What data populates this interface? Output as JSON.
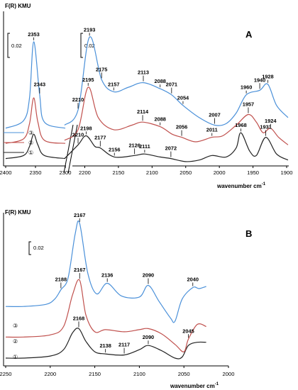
{
  "chart_data": [
    {
      "type": "line",
      "panel_label": "A",
      "yunit": "F(R) KMU",
      "xlabel": "wavenumber cm",
      "xlabel_sup": "-1",
      "scale_bar": "0.02",
      "legend": [
        "①",
        "②",
        "③"
      ],
      "legend_order": [
        "③",
        "②",
        "①"
      ],
      "xticks_left": [
        "2400",
        "2350",
        "2300"
      ],
      "xticks_right": [
        "2200",
        "2150",
        "2100",
        "2050",
        "2000",
        "1950",
        "1900"
      ],
      "colors": {
        "1": "#222222",
        "2": "#c0504d",
        "3": "#4a90d9"
      },
      "series": [
        {
          "name": "①",
          "x": [
            2400,
            2370,
            2360,
            2353,
            2346,
            2335,
            2300
          ],
          "y": [
            0.003,
            0.005,
            0.011,
            0.019,
            0.012,
            0.005,
            0.003
          ]
        },
        {
          "name": "②",
          "x": [
            2400,
            2370,
            2360,
            2353,
            2346,
            2335,
            2300
          ],
          "y": [
            0.013,
            0.016,
            0.026,
            0.043,
            0.027,
            0.015,
            0.013
          ]
        },
        {
          "name": "③",
          "x": [
            2400,
            2370,
            2360,
            2353,
            2343,
            2335,
            2300
          ],
          "y": [
            0.023,
            0.028,
            0.043,
            0.08,
            0.045,
            0.027,
            0.023
          ]
        },
        {
          "name": "①",
          "x": [
            2230,
            2210,
            2198,
            2185,
            2177,
            2156,
            2126,
            2111,
            2088,
            2072,
            2050,
            2030,
            2011,
            1990,
            1975,
            1968,
            1955,
            1945,
            1931,
            1915,
            1898
          ],
          "y": [
            0.003,
            0.012,
            0.018,
            0.011,
            0.01,
            0.004,
            0.005,
            0.006,
            0.004,
            0.003,
            0.001,
            0.002,
            0.005,
            0.004,
            0.01,
            0.02,
            0.008,
            0.005,
            0.017,
            0.006,
            0.002
          ]
        },
        {
          "name": "②",
          "x": [
            2230,
            2210,
            2195,
            2180,
            2157,
            2130,
            2114,
            2088,
            2070,
            2056,
            2035,
            2011,
            1995,
            1975,
            1957,
            1945,
            1935,
            1924,
            1912,
            1898
          ],
          "y": [
            0.015,
            0.022,
            0.05,
            0.03,
            0.022,
            0.025,
            0.027,
            0.024,
            0.019,
            0.017,
            0.014,
            0.017,
            0.018,
            0.025,
            0.032,
            0.027,
            0.02,
            0.023,
            0.017,
            0.012
          ]
        },
        {
          "name": "③",
          "x": [
            2230,
            2210,
            2193,
            2175,
            2157,
            2135,
            2113,
            2088,
            2071,
            2054,
            2030,
            2007,
            1990,
            1975,
            1960,
            1940,
            1928,
            1915,
            1898
          ],
          "y": [
            0.025,
            0.035,
            0.083,
            0.055,
            0.047,
            0.05,
            0.053,
            0.049,
            0.045,
            0.038,
            0.03,
            0.025,
            0.026,
            0.033,
            0.045,
            0.048,
            0.052,
            0.038,
            0.03
          ]
        }
      ],
      "peak_labels": [
        {
          "text": "2353",
          "series": "③",
          "x": 2353
        },
        {
          "text": "2343",
          "series": "③",
          "x": 2343
        },
        {
          "text": "2193",
          "series": "③",
          "x": 2193
        },
        {
          "text": "2175",
          "series": "③",
          "x": 2175
        },
        {
          "text": "2157",
          "series": "③",
          "x": 2157
        },
        {
          "text": "2113",
          "series": "③",
          "x": 2113
        },
        {
          "text": "2088",
          "series": "③",
          "x": 2088
        },
        {
          "text": "2071",
          "series": "③",
          "x": 2071
        },
        {
          "text": "2054",
          "series": "③",
          "x": 2054
        },
        {
          "text": "2007",
          "series": "③",
          "x": 2007
        },
        {
          "text": "1960",
          "series": "③",
          "x": 1960
        },
        {
          "text": "1940",
          "series": "③",
          "x": 1940
        },
        {
          "text": "1928",
          "series": "③",
          "x": 1928
        },
        {
          "text": "2210",
          "series": "③",
          "x": 2210
        },
        {
          "text": "2195",
          "series": "②",
          "x": 2195
        },
        {
          "text": "2114",
          "series": "②",
          "x": 2114
        },
        {
          "text": "2088",
          "series": "②",
          "x": 2088
        },
        {
          "text": "2056",
          "series": "②",
          "x": 2056
        },
        {
          "text": "2011",
          "series": "②",
          "x": 2011
        },
        {
          "text": "1957",
          "series": "②",
          "x": 1957
        },
        {
          "text": "1924",
          "series": "②",
          "x": 1924
        },
        {
          "text": "2210",
          "series": "①",
          "x": 2210
        },
        {
          "text": "2198",
          "series": "①",
          "x": 2198
        },
        {
          "text": "2177",
          "series": "①",
          "x": 2177
        },
        {
          "text": "2156",
          "series": "①",
          "x": 2156
        },
        {
          "text": "2126",
          "series": "①",
          "x": 2126
        },
        {
          "text": "2111",
          "series": "①",
          "x": 2111
        },
        {
          "text": "2072",
          "series": "①",
          "x": 2072
        },
        {
          "text": "1968",
          "series": "①",
          "x": 1968
        },
        {
          "text": "1931",
          "series": "①",
          "x": 1931
        }
      ]
    },
    {
      "type": "line",
      "panel_label": "B",
      "yunit": "F(R) KMU",
      "xlabel": "wavenumber cm",
      "xlabel_sup": "-1",
      "scale_bar": "0.02",
      "legend": [
        "①",
        "②",
        "③"
      ],
      "legend_order": [
        "③",
        "②",
        "①"
      ],
      "xticks": [
        "2250",
        "2200",
        "2150",
        "2100",
        "2050",
        "2000"
      ],
      "colors": {
        "1": "#222222",
        "2": "#c0504d",
        "3": "#4a90d9"
      },
      "series": [
        {
          "name": "①",
          "x": [
            2250,
            2230,
            2200,
            2185,
            2175,
            2168,
            2160,
            2150,
            2138,
            2117,
            2100,
            2090,
            2075,
            2060,
            2052,
            2045,
            2035,
            2025
          ],
          "y": [
            0.002,
            0.002,
            0.004,
            0.01,
            0.026,
            0.03,
            0.018,
            0.008,
            0.006,
            0.005,
            0.01,
            0.014,
            0.009,
            0.002,
            0.003,
            0.014,
            0.017,
            0.017
          ]
        },
        {
          "name": "②",
          "x": [
            2250,
            2230,
            2200,
            2185,
            2175,
            2167,
            2160,
            2150,
            2138,
            2117,
            2100,
            2090,
            2075,
            2060,
            2050,
            2045,
            2035,
            2025
          ],
          "y": [
            0.022,
            0.022,
            0.024,
            0.032,
            0.062,
            0.076,
            0.043,
            0.027,
            0.029,
            0.027,
            0.029,
            0.03,
            0.025,
            0.015,
            0.008,
            0.02,
            0.034,
            0.032
          ]
        },
        {
          "name": "③",
          "x": [
            2250,
            2230,
            2205,
            2195,
            2188,
            2180,
            2172,
            2167,
            2158,
            2148,
            2136,
            2120,
            2100,
            2090,
            2078,
            2065,
            2060,
            2052,
            2040,
            2033,
            2025
          ],
          "y": [
            0.051,
            0.051,
            0.053,
            0.058,
            0.067,
            0.078,
            0.12,
            0.13,
            0.083,
            0.063,
            0.073,
            0.061,
            0.06,
            0.071,
            0.056,
            0.04,
            0.037,
            0.058,
            0.069,
            0.068,
            0.07
          ]
        }
      ],
      "peak_labels": [
        {
          "text": "2167",
          "series": "③",
          "x": 2167
        },
        {
          "text": "2188",
          "series": "③",
          "x": 2188
        },
        {
          "text": "2136",
          "series": "③",
          "x": 2136
        },
        {
          "text": "2090",
          "series": "③",
          "x": 2090
        },
        {
          "text": "2040",
          "series": "③",
          "x": 2040
        },
        {
          "text": "2167",
          "series": "②",
          "x": 2167
        },
        {
          "text": "2045",
          "series": "②",
          "x": 2045
        },
        {
          "text": "2168",
          "series": "①",
          "x": 2168
        },
        {
          "text": "2138",
          "series": "①",
          "x": 2138
        },
        {
          "text": "2117",
          "series": "①",
          "x": 2117
        },
        {
          "text": "2090",
          "series": "①",
          "x": 2090
        }
      ]
    }
  ]
}
